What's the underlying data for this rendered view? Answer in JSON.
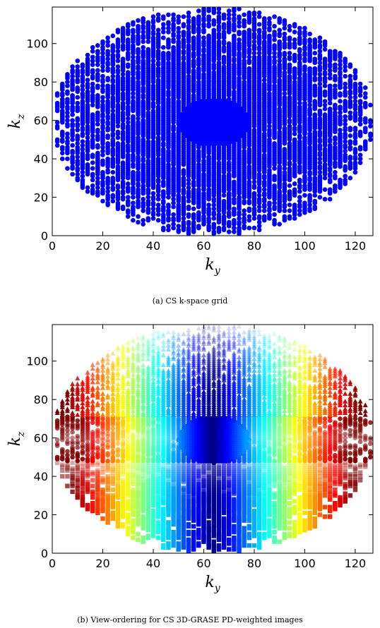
{
  "figure": {
    "caption_a": "(a) CS k-space grid",
    "caption_b": "(b) View-ordering for CS 3D-GRASE PD-weighted images"
  },
  "chart_data": [
    {
      "type": "scatter",
      "xlabel": "k_y",
      "ylabel": "k_z",
      "xlim": [
        0,
        127
      ],
      "ylim": [
        0,
        119
      ],
      "xticks": [
        0,
        20,
        40,
        60,
        80,
        100,
        120
      ],
      "yticks": [
        0,
        20,
        40,
        60,
        80,
        100
      ],
      "marker": "circle",
      "color": "#0000ff",
      "grid": false,
      "sampling_region": {
        "shape": "ellipse",
        "center": [
          63.5,
          59.5
        ],
        "radius_ky": 63.5,
        "radius_kz": 59.5
      },
      "fully_sampled_center": {
        "shape": "ellipse",
        "center": [
          64,
          59
        ],
        "radius_ky": 14,
        "radius_kz": 12
      }
    },
    {
      "type": "scatter",
      "xlabel": "k_y",
      "ylabel": "k_z",
      "xlim": [
        0,
        127
      ],
      "ylim": [
        0,
        119
      ],
      "xticks": [
        0,
        20,
        40,
        60,
        80,
        100,
        120
      ],
      "yticks": [
        0,
        20,
        40,
        60,
        80,
        100
      ],
      "markers": [
        "triangle",
        "square",
        "circle"
      ],
      "colormap": "jet",
      "grid": false,
      "segments": [
        {
          "marker": "triangle",
          "kz_range": [
            72,
            119
          ]
        },
        {
          "marker": "circle",
          "kz_range": [
            48,
            72
          ]
        },
        {
          "marker": "square",
          "kz_range": [
            0,
            48
          ]
        }
      ]
    }
  ]
}
